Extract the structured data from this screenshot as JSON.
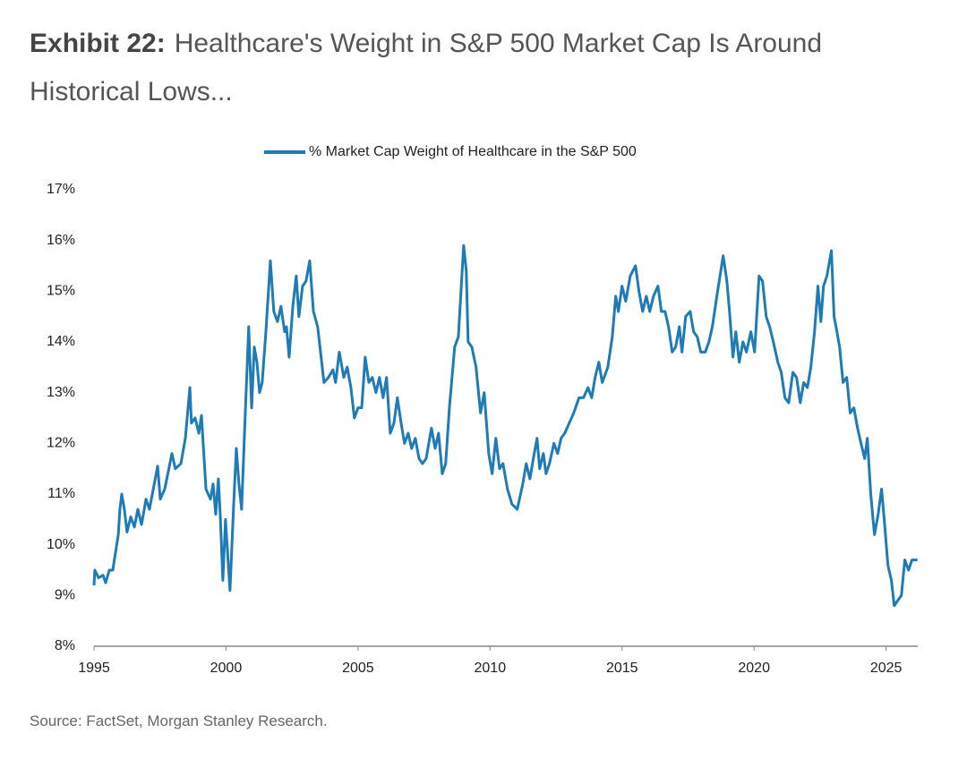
{
  "chart_data": {
    "type": "line",
    "title_label": "Exhibit 22:",
    "title": "Healthcare's Weight in S&P 500 Market Cap Is Around Historical Lows...",
    "source": "Source: FactSet, Morgan Stanley Research.",
    "x": [
      1995.0,
      1995.03,
      1995.17,
      1995.34,
      1995.44,
      1995.58,
      1995.71,
      1995.92,
      1995.98,
      1996.05,
      1996.15,
      1996.25,
      1996.39,
      1996.53,
      1996.66,
      1996.8,
      1996.97,
      1997.1,
      1997.41,
      1997.51,
      1997.68,
      1997.95,
      1998.08,
      1998.29,
      1998.46,
      1998.63,
      1998.69,
      1998.83,
      1998.97,
      1999.07,
      1999.24,
      1999.41,
      1999.51,
      1999.61,
      1999.71,
      1999.78,
      1999.88,
      1999.98,
      2000.15,
      2000.29,
      2000.39,
      2000.49,
      2000.59,
      2000.73,
      2000.86,
      2000.97,
      2001.07,
      2001.17,
      2001.27,
      2001.37,
      2001.51,
      2001.68,
      2001.81,
      2001.95,
      2002.08,
      2002.22,
      2002.29,
      2002.39,
      2002.53,
      2002.66,
      2002.76,
      2002.9,
      2003.03,
      2003.17,
      2003.31,
      2003.47,
      2003.58,
      2003.71,
      2003.88,
      2004.05,
      2004.15,
      2004.29,
      2004.46,
      2004.59,
      2004.73,
      2004.86,
      2005.0,
      2005.14,
      2005.27,
      2005.41,
      2005.54,
      2005.68,
      2005.81,
      2005.95,
      2006.08,
      2006.22,
      2006.36,
      2006.49,
      2006.63,
      2006.76,
      2006.9,
      2007.03,
      2007.17,
      2007.31,
      2007.44,
      2007.58,
      2007.78,
      2007.92,
      2008.05,
      2008.19,
      2008.32,
      2008.46,
      2008.66,
      2008.8,
      2009.0,
      2009.1,
      2009.17,
      2009.31,
      2009.47,
      2009.64,
      2009.78,
      2009.95,
      2010.08,
      2010.22,
      2010.36,
      2010.49,
      2010.66,
      2010.83,
      2011.03,
      2011.24,
      2011.37,
      2011.51,
      2011.64,
      2011.78,
      2011.88,
      2012.02,
      2012.12,
      2012.25,
      2012.42,
      2012.56,
      2012.69,
      2012.83,
      2013.0,
      2013.17,
      2013.37,
      2013.54,
      2013.71,
      2013.85,
      2013.98,
      2014.12,
      2014.25,
      2014.46,
      2014.63,
      2014.76,
      2014.86,
      2015.0,
      2015.14,
      2015.31,
      2015.51,
      2015.64,
      2015.78,
      2015.92,
      2016.05,
      2016.19,
      2016.36,
      2016.49,
      2016.63,
      2016.76,
      2016.9,
      2017.03,
      2017.17,
      2017.27,
      2017.41,
      2017.58,
      2017.71,
      2017.85,
      2017.98,
      2018.15,
      2018.29,
      2018.42,
      2018.59,
      2018.83,
      2018.97,
      2019.07,
      2019.2,
      2019.31,
      2019.44,
      2019.58,
      2019.71,
      2019.88,
      2020.02,
      2020.19,
      2020.32,
      2020.46,
      2020.59,
      2020.73,
      2020.9,
      2021.03,
      2021.17,
      2021.31,
      2021.47,
      2021.61,
      2021.75,
      2021.88,
      2022.02,
      2022.15,
      2022.29,
      2022.42,
      2022.53,
      2022.63,
      2022.76,
      2022.93,
      2023.03,
      2023.14,
      2023.24,
      2023.37,
      2023.51,
      2023.64,
      2023.78,
      2023.92,
      2024.05,
      2024.19,
      2024.29,
      2024.42,
      2024.56,
      2024.7,
      2024.83,
      2024.93,
      2025.07,
      2025.2,
      2025.31,
      2025.44,
      2025.58,
      2025.71,
      2025.85,
      2025.98,
      2026.19
    ],
    "series": [
      {
        "name": "% Market Cap Weight of Healthcare in the S&P 500",
        "color": "#1f7bb6",
        "values": [
          9.2,
          9.5,
          9.35,
          9.4,
          9.25,
          9.5,
          9.5,
          10.2,
          10.7,
          11.0,
          10.7,
          10.25,
          10.55,
          10.35,
          10.7,
          10.4,
          10.9,
          10.7,
          11.55,
          10.9,
          11.1,
          11.8,
          11.5,
          11.6,
          12.1,
          13.1,
          12.4,
          12.5,
          12.2,
          12.55,
          11.1,
          10.9,
          11.2,
          10.6,
          11.3,
          10.6,
          9.3,
          10.5,
          9.1,
          10.8,
          11.9,
          11.2,
          10.7,
          12.6,
          14.3,
          12.7,
          13.9,
          13.6,
          13.0,
          13.2,
          14.2,
          15.6,
          14.6,
          14.4,
          14.7,
          14.2,
          14.3,
          13.7,
          14.7,
          15.3,
          14.5,
          15.1,
          15.2,
          15.6,
          14.6,
          14.3,
          13.8,
          13.2,
          13.3,
          13.45,
          13.2,
          13.8,
          13.3,
          13.5,
          13.1,
          12.5,
          12.7,
          12.7,
          13.7,
          13.2,
          13.3,
          13.0,
          13.3,
          12.9,
          13.3,
          12.2,
          12.4,
          12.9,
          12.4,
          12.0,
          12.2,
          11.9,
          12.1,
          11.7,
          11.6,
          11.7,
          12.3,
          11.9,
          12.2,
          11.4,
          11.6,
          12.7,
          13.9,
          14.1,
          15.9,
          15.4,
          14.0,
          13.9,
          13.5,
          12.6,
          13.0,
          11.8,
          11.4,
          12.1,
          11.5,
          11.6,
          11.1,
          10.8,
          10.7,
          11.2,
          11.6,
          11.3,
          11.7,
          12.1,
          11.5,
          11.8,
          11.4,
          11.6,
          12.0,
          11.8,
          12.1,
          12.2,
          12.4,
          12.6,
          12.9,
          12.9,
          13.1,
          12.9,
          13.3,
          13.6,
          13.2,
          13.5,
          14.1,
          14.9,
          14.6,
          15.1,
          14.8,
          15.3,
          15.5,
          15.0,
          14.6,
          14.9,
          14.6,
          14.9,
          15.1,
          14.6,
          14.6,
          14.3,
          13.8,
          13.9,
          14.3,
          13.8,
          14.5,
          14.6,
          14.2,
          14.1,
          13.8,
          13.8,
          14.0,
          14.3,
          14.9,
          15.7,
          15.2,
          14.6,
          13.7,
          14.2,
          13.6,
          14.0,
          13.8,
          14.2,
          13.8,
          15.3,
          15.2,
          14.5,
          14.3,
          14.0,
          13.6,
          13.4,
          12.9,
          12.8,
          13.4,
          13.3,
          12.8,
          13.2,
          13.1,
          13.5,
          14.2,
          15.1,
          14.4,
          15.1,
          15.3,
          15.8,
          14.5,
          14.2,
          13.9,
          13.2,
          13.3,
          12.6,
          12.7,
          12.3,
          12.0,
          11.7,
          12.1,
          11.0,
          10.2,
          10.6,
          11.1,
          10.5,
          9.6,
          9.3,
          8.8,
          8.9,
          9.0,
          9.7,
          9.5,
          9.7,
          9.7
        ]
      }
    ],
    "xlim": [
      1995,
      2026.2
    ],
    "xticks": [
      1995,
      2000,
      2005,
      2010,
      2015,
      2020,
      2025
    ],
    "ylim": [
      8,
      17
    ],
    "yticks": [
      {
        "value": 8,
        "label": "8%"
      },
      {
        "value": 9,
        "label": "9%"
      },
      {
        "value": 10,
        "label": "10%"
      },
      {
        "value": 11,
        "label": "11%"
      },
      {
        "value": 12,
        "label": "12%"
      },
      {
        "value": 13,
        "label": "13%"
      },
      {
        "value": 14,
        "label": "14%"
      },
      {
        "value": 15,
        "label": "15%"
      },
      {
        "value": 16,
        "label": "16%"
      },
      {
        "value": 17,
        "label": "17%"
      }
    ],
    "grid": false,
    "legend": "top"
  }
}
